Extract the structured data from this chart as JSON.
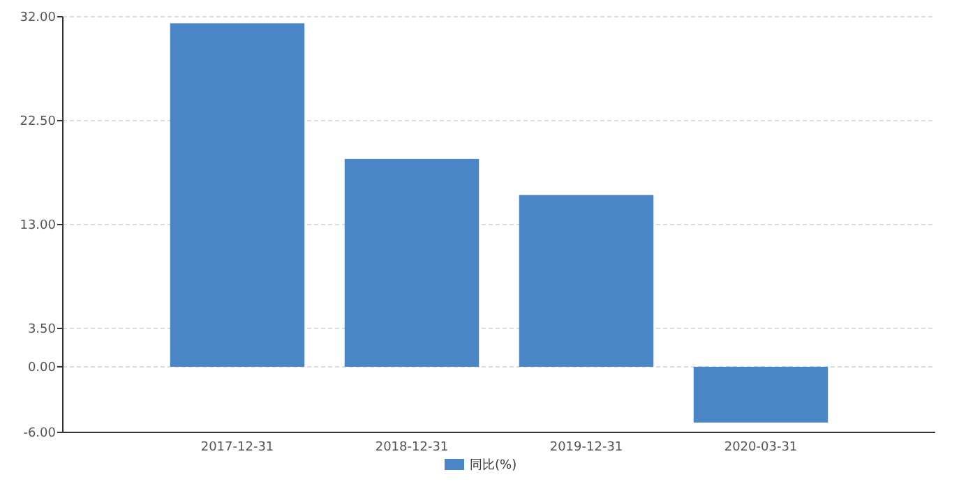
{
  "chart_data": {
    "type": "bar",
    "categories": [
      "2017-12-31",
      "2018-12-31",
      "2019-12-31",
      "2020-03-31"
    ],
    "series": [
      {
        "name": "同比(%)",
        "color": "#4a86c5",
        "values": [
          31.4,
          19.0,
          15.7,
          -5.1
        ]
      }
    ],
    "ylim": [
      -6,
      32
    ],
    "yticks": [
      {
        "value": -6,
        "label": "-6.00"
      },
      {
        "value": 0,
        "label": "0.00"
      },
      {
        "value": 3.5,
        "label": "3.50"
      },
      {
        "value": 13,
        "label": "13.00"
      },
      {
        "value": 22.5,
        "label": "22.50"
      },
      {
        "value": 32,
        "label": "32.00"
      }
    ],
    "grid": "y",
    "legend": "bottom"
  }
}
